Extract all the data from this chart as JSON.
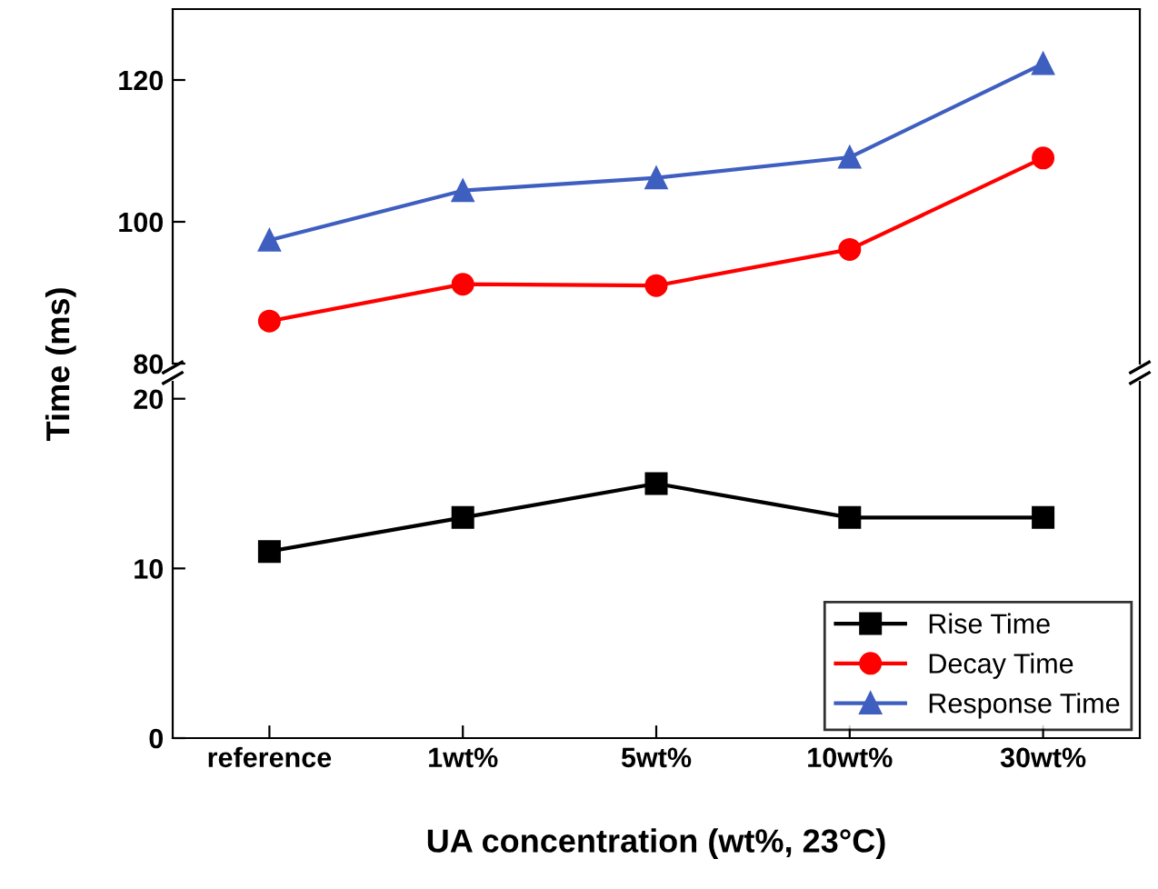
{
  "chart_data": [
    {
      "type": "line",
      "ylim": [
        80,
        130
      ],
      "yticks": [
        80,
        100,
        120
      ],
      "tick_labels": "y",
      "legend": "bottom right",
      "series": [
        {
          "name": "Decay Time",
          "color": "#ff0000",
          "marker": "circle",
          "values": [
            86,
            91.2,
            91,
            96.1,
            109
          ]
        },
        {
          "name": "Response Time",
          "color": "#3f5fc0",
          "marker": "triangle",
          "values": [
            97.4,
            104.4,
            106.2,
            109.1,
            122.3
          ]
        }
      ]
    },
    {
      "type": "line",
      "categories": [
        "reference",
        "1wt%",
        "5wt%",
        "10wt%",
        "30wt%"
      ],
      "ylim": [
        0,
        21
      ],
      "yticks": [
        0,
        10,
        20
      ],
      "xlabel": "UA concentration (wt%, 23°C)",
      "ylabel": "Time (ms)",
      "legend": "bottom right",
      "series": [
        {
          "name": "Rise Time",
          "color": "#000000",
          "marker": "square",
          "values": [
            11,
            13,
            15,
            13,
            13
          ]
        }
      ]
    }
  ]
}
